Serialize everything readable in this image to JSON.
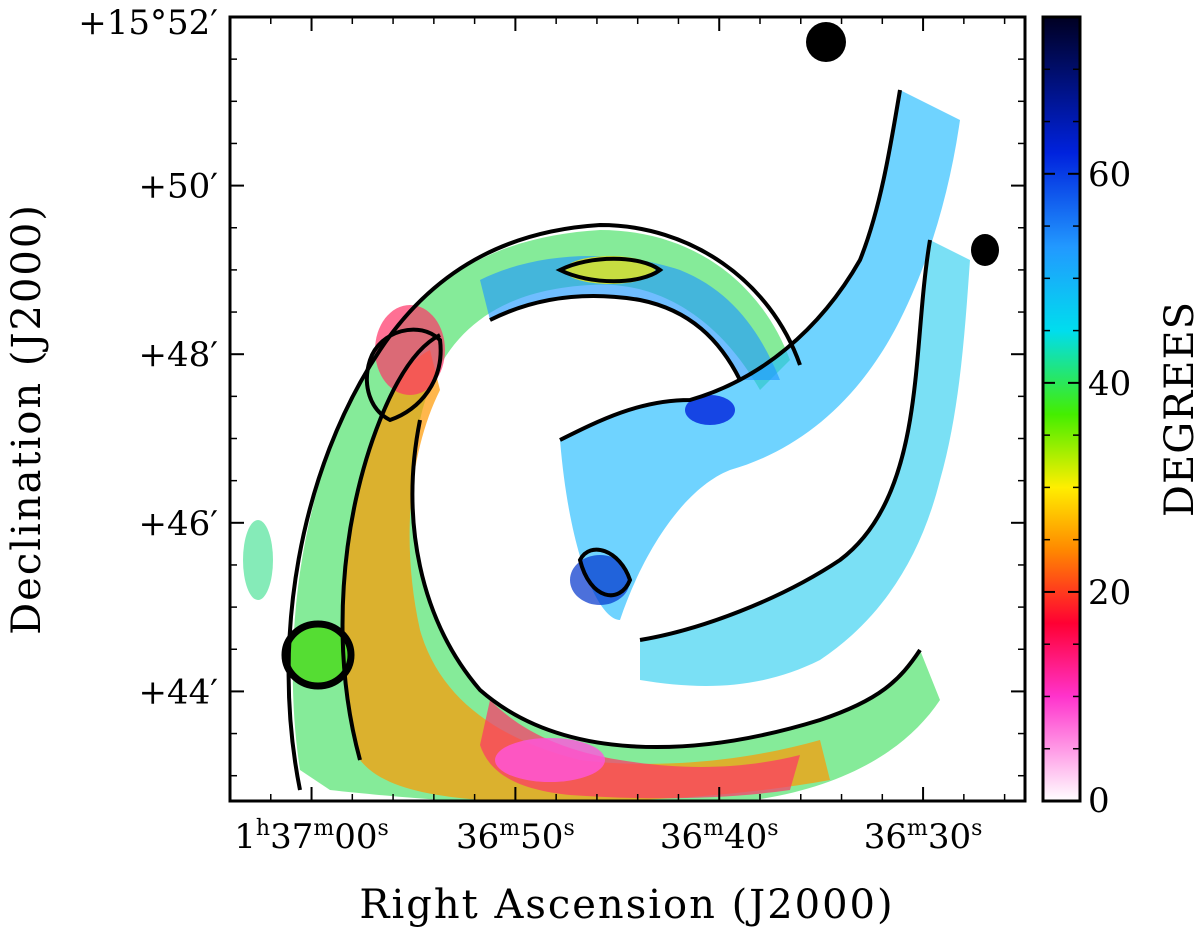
{
  "chart_data": {
    "type": "heatmap",
    "title": "",
    "xlabel": "Right Ascension (J2000)",
    "ylabel": "Declination (J2000)",
    "x_ticks": [
      {
        "value": 0,
        "h": "1",
        "m": "37",
        "s": "00"
      },
      {
        "value": 10,
        "h": "",
        "m": "36",
        "s": "50"
      },
      {
        "value": 20,
        "h": "",
        "m": "36",
        "s": "40"
      },
      {
        "value": 30,
        "h": "",
        "m": "36",
        "s": "30"
      }
    ],
    "x_range_seconds_offset": [
      -4,
      35
    ],
    "y_ticks": [
      {
        "value": 52,
        "label": "+15°52′"
      },
      {
        "value": 50,
        "label": "+50′"
      },
      {
        "value": 48,
        "label": "+48′"
      },
      {
        "value": 46,
        "label": "+46′"
      },
      {
        "value": 44,
        "label": "+44′"
      }
    ],
    "y_range_arcmin": [
      42.7,
      52.0
    ],
    "colorbar": {
      "label": "DEGREES",
      "range": [
        0,
        75
      ],
      "ticks": [
        0,
        20,
        40,
        60
      ],
      "stops": [
        {
          "v": 0,
          "c": "#ffffff"
        },
        {
          "v": 10,
          "c": "#ff33cc"
        },
        {
          "v": 17,
          "c": "#ff0033"
        },
        {
          "v": 24,
          "c": "#ff8800"
        },
        {
          "v": 30,
          "c": "#ffee00"
        },
        {
          "v": 37,
          "c": "#44ee00"
        },
        {
          "v": 45,
          "c": "#00ddee"
        },
        {
          "v": 53,
          "c": "#2299ff"
        },
        {
          "v": 62,
          "c": "#0022dd"
        },
        {
          "v": 75,
          "c": "#000022"
        }
      ]
    },
    "grid": false,
    "contours": "black"
  }
}
